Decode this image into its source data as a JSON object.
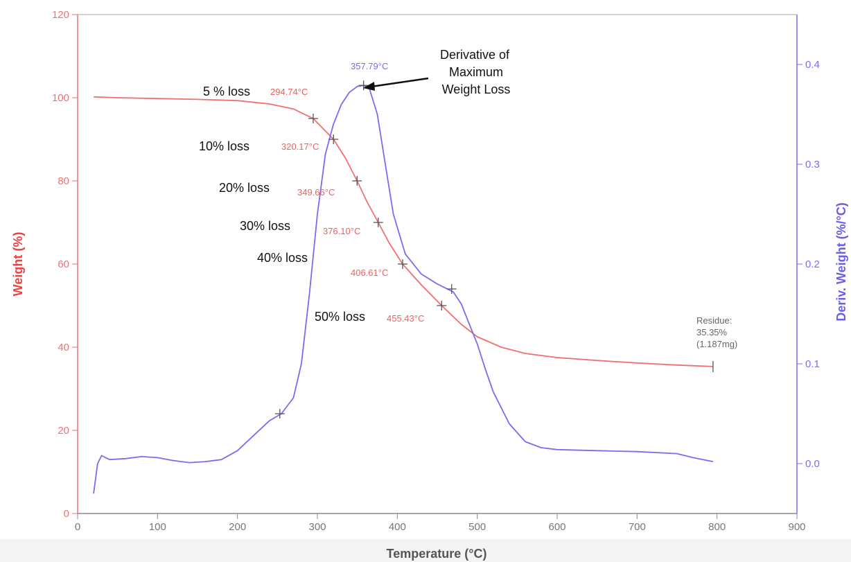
{
  "chart_data": {
    "type": "line",
    "xlabel": "Temperature (°C)",
    "ylabel_left": "Weight (%)",
    "ylabel_right": "Deriv. Weight (%/°C)",
    "xlim": [
      0,
      900
    ],
    "ylim_left": [
      0,
      120
    ],
    "ylim_right": [
      -0.05,
      0.45
    ],
    "x_ticks": [
      0,
      100,
      200,
      300,
      400,
      500,
      600,
      700,
      800,
      900
    ],
    "y_left_ticks": [
      0,
      20,
      40,
      60,
      80,
      100,
      120
    ],
    "y_right_ticks": [
      0.0,
      0.1,
      0.2,
      0.3,
      0.4
    ],
    "y_right_tick_labels": [
      "0.0",
      "0.1",
      "0.2",
      "0.3",
      "0.4"
    ],
    "grid": false,
    "colors": {
      "weight": "#f07070",
      "deriv": "#7a6cf0",
      "marker": "#555555"
    },
    "series": [
      {
        "axis": "left",
        "x": [
          20,
          50,
          100,
          150,
          200,
          240,
          270,
          294.74,
          320.17,
          335,
          349.66,
          362,
          376.1,
          390,
          406.61,
          430,
          455.43,
          480,
          500,
          530,
          560,
          600,
          650,
          700,
          750,
          795
        ],
        "values": [
          100.2,
          100.0,
          99.8,
          99.6,
          99.3,
          98.5,
          97.3,
          95,
          90,
          85.5,
          80,
          75,
          70,
          65,
          60,
          55,
          50,
          45.5,
          42.5,
          40,
          38.5,
          37.5,
          36.8,
          36.2,
          35.7,
          35.35
        ]
      },
      {
        "axis": "right",
        "x": [
          20,
          25,
          30,
          40,
          60,
          80,
          100,
          120,
          140,
          160,
          180,
          200,
          220,
          240,
          255,
          270,
          280,
          290,
          300,
          310,
          320,
          330,
          340,
          350,
          357.79,
          365,
          375,
          385,
          395,
          410,
          430,
          450,
          470,
          480,
          490,
          500,
          510,
          520,
          540,
          560,
          580,
          600,
          650,
          700,
          750,
          770,
          795
        ],
        "values": [
          -0.03,
          0.0,
          0.008,
          0.004,
          0.005,
          0.007,
          0.006,
          0.003,
          0.001,
          0.002,
          0.004,
          0.013,
          0.028,
          0.043,
          0.05,
          0.066,
          0.1,
          0.17,
          0.25,
          0.31,
          0.34,
          0.36,
          0.372,
          0.378,
          0.379,
          0.376,
          0.35,
          0.3,
          0.25,
          0.21,
          0.19,
          0.18,
          0.172,
          0.16,
          0.14,
          0.12,
          0.095,
          0.072,
          0.04,
          0.022,
          0.016,
          0.014,
          0.013,
          0.012,
          0.01,
          0.006,
          0.002
        ]
      }
    ],
    "markers": [
      {
        "axis": "left",
        "x": 294.74,
        "y": 95
      },
      {
        "axis": "left",
        "x": 320.17,
        "y": 90
      },
      {
        "axis": "left",
        "x": 349.66,
        "y": 80
      },
      {
        "axis": "left",
        "x": 376.1,
        "y": 70
      },
      {
        "axis": "left",
        "x": 406.61,
        "y": 60
      },
      {
        "axis": "left",
        "x": 455.43,
        "y": 50
      },
      {
        "axis": "right",
        "x": 357.79,
        "y": 0.379
      },
      {
        "axis": "right",
        "x": 253,
        "y": 0.05
      },
      {
        "axis": "right",
        "x": 468,
        "y": 0.175
      }
    ],
    "annotations": {
      "loss_labels": [
        "5 % loss",
        "10% loss",
        "20% loss",
        "30% loss",
        "40% loss",
        "50% loss"
      ],
      "temp_labels": [
        "294.74°C",
        "320.17°C",
        "349.66°C",
        "376.10°C",
        "406.61°C",
        "455.43°C"
      ],
      "peak_label": "357.79°C",
      "note_lines": [
        "Derivative of",
        "Maximum",
        "Weight Loss"
      ],
      "residue_lines": [
        "Residue:",
        "35.35%",
        "(1.187mg)"
      ],
      "residue_point": {
        "x": 795,
        "y": 35.35
      }
    }
  }
}
